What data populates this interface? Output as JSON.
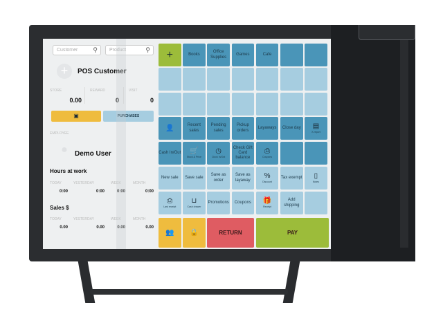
{
  "left": {
    "customer_placeholder": "Customer",
    "product_placeholder": "Product",
    "customer_name": "POS Customer",
    "stats": [
      {
        "label": "STORE",
        "value": "0.00"
      },
      {
        "label": "REWARD",
        "value": "0"
      },
      {
        "label": "VISIT",
        "value": "0"
      }
    ],
    "purchases_label": "PURCHASES",
    "employee_label": "EMPLOYEE",
    "employee_name": "Demo User",
    "hours_title": "Hours at work",
    "hours": [
      {
        "label": "TODAY",
        "value": "0:00"
      },
      {
        "label": "YESTERDAY",
        "value": "0:00"
      },
      {
        "label": "WEEK",
        "value": "0:00"
      },
      {
        "label": "MONTH",
        "value": "0:00"
      }
    ],
    "sales_title": "Sales $",
    "sales": [
      {
        "label": "TODAY",
        "value": "0.00"
      },
      {
        "label": "YESTERDAY",
        "value": "0.00"
      },
      {
        "label": "WEEK",
        "value": "0.00"
      },
      {
        "label": "MONTH",
        "value": "0.00"
      }
    ]
  },
  "grid": {
    "row1": [
      "+",
      "Books",
      "Office Supplies",
      "Games",
      "Cafe",
      "",
      ""
    ],
    "row4": [
      "",
      "Recent sales",
      "Pending sales",
      "Pickup orders",
      "Layaways",
      "Close day",
      "X-report"
    ],
    "row5": [
      "Cash In/Out",
      "Stock & Price",
      "Clock In/Out",
      "Check Gift Card balance",
      "Coupons",
      "",
      ""
    ],
    "row6": [
      "New sale",
      "Save sale",
      "Save as order",
      "Save as layaway",
      "Discount",
      "Tax exempt",
      "Notes"
    ],
    "row7": [
      "Last receipt",
      "Cash drawer",
      "Promotions",
      "Coupons",
      "Receipt",
      "Add shipping",
      ""
    ],
    "return_label": "RETURN",
    "pay_label": "PAY"
  },
  "colors": {
    "dark_tile": "#4a95b8",
    "light_tile": "#a6cde0",
    "green": "#9cbc3a",
    "yellow": "#efbc3e",
    "red": "#df5c62"
  }
}
